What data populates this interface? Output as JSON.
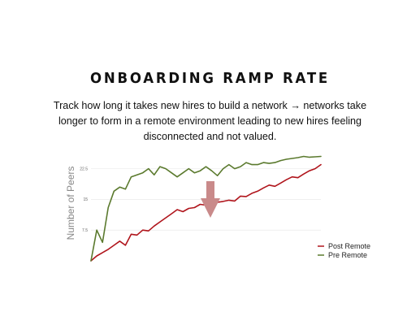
{
  "slide": {
    "title": "ONBOARDING RAMP RATE",
    "subtitle": "Track how long it takes new hires to build a network → networks take longer to form in a remote environment leading to new hires feeling disconnected and not valued."
  },
  "colors": {
    "post_remote": "#b0151c",
    "pre_remote": "#5b7a2e",
    "arrow": "#c98a8a",
    "grid": "#e6e6e6"
  },
  "chart_data": {
    "type": "line",
    "ylabel": "Number of Peers",
    "xlabel": "",
    "ylim": [
      0,
      26
    ],
    "yticks": [
      7.5,
      15,
      22.5
    ],
    "ytick_labels": [
      "7.5",
      "15",
      "22.5"
    ],
    "grid": true,
    "legend_position": "bottom-right",
    "annotation": "down-arrow",
    "x": [
      0,
      1,
      2,
      3,
      4,
      5,
      6,
      7,
      8,
      9,
      10,
      11,
      12,
      13,
      14,
      15,
      16,
      17,
      18,
      19,
      20,
      21,
      22,
      23,
      24,
      25,
      26,
      27,
      28,
      29,
      30,
      31,
      32,
      33,
      34,
      35,
      36,
      37,
      38,
      39,
      40
    ],
    "series": [
      {
        "name": "Post Remote",
        "values": [
          0,
          1.2,
          2,
          2.8,
          3.8,
          4.8,
          3.8,
          6.5,
          6.3,
          7.5,
          7.3,
          8.5,
          9.5,
          10.5,
          11.5,
          12.5,
          12,
          12.8,
          13,
          13.8,
          13.6,
          14,
          14.3,
          14.5,
          14.8,
          14.6,
          15.8,
          15.7,
          16.5,
          17,
          17.8,
          18.5,
          18.2,
          19,
          19.8,
          20.5,
          20.3,
          21.2,
          22,
          22.5,
          23.5
        ],
        "color_key": "post_remote"
      },
      {
        "name": "Pre Remote",
        "values": [
          0,
          7.5,
          4.5,
          13,
          17,
          18,
          17.5,
          20.5,
          21,
          21.5,
          22.5,
          21,
          23,
          22.5,
          21.5,
          20.5,
          21.5,
          22.5,
          21.5,
          22,
          23,
          22,
          20.8,
          22.5,
          23.5,
          22.5,
          23,
          24,
          23.5,
          23.5,
          24,
          23.8,
          24,
          24.5,
          24.8,
          25,
          25.2,
          25.5,
          25.3,
          25.4,
          25.5
        ],
        "color_key": "pre_remote"
      }
    ]
  }
}
